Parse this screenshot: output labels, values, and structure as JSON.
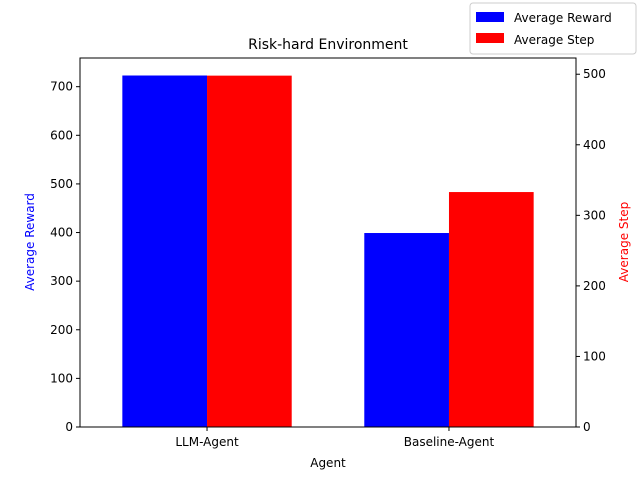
{
  "chart_data": {
    "type": "bar",
    "title": "Risk-hard Environment",
    "xlabel": "Agent",
    "categories": [
      "LLM-Agent",
      "Baseline-Agent"
    ],
    "series": [
      {
        "name": "Average Reward",
        "axis": "left",
        "color": "#0000ff",
        "values": [
          723,
          399
        ]
      },
      {
        "name": "Average Step",
        "axis": "right",
        "color": "#ff0000",
        "values": [
          498,
          333
        ]
      }
    ],
    "y_left": {
      "label": "Average Reward",
      "label_color": "#0000ff",
      "ylim": [
        0,
        759
      ],
      "ticks": [
        0,
        100,
        200,
        300,
        400,
        500,
        600,
        700
      ]
    },
    "y_right": {
      "label": "Average Step",
      "label_color": "#ff0000",
      "ylim": [
        0,
        523
      ],
      "ticks": [
        0,
        100,
        200,
        300,
        400,
        500
      ]
    },
    "legend_position": "top-right",
    "grid": false
  }
}
